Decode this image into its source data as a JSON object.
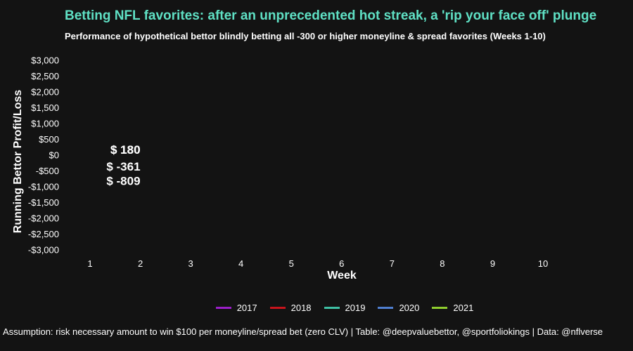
{
  "title": "Betting NFL favorites: after an unprecedented hot streak, a 'rip your face off' plunge",
  "subtitle": "Performance of hypothetical bettor blindly betting all -300 or higher moneyline & spread favorites (Weeks 1-10)",
  "caption": "Assumption: risk necessary amount to win $100 per moneyline/spread bet (zero CLV) | Table: @deepvaluebettor, @sportfoliokings | Data: @nflverse",
  "colors": {
    "background": "#131313",
    "title": "#5fe0c4",
    "text": "#ffffff"
  },
  "chart_data": {
    "type": "line",
    "title": "Betting NFL favorites: after an unprecedented hot streak, a 'rip your face off' plunge",
    "subtitle": "Performance of hypothetical bettor blindly betting all -300 or higher moneyline & spread favorites (Weeks 1-10)",
    "xlabel": "Week",
    "ylabel": "Running Bettor Profit/Loss",
    "x_ticks": [
      1,
      2,
      3,
      4,
      5,
      6,
      7,
      8,
      9,
      10
    ],
    "y_ticks": [
      3000,
      2500,
      2000,
      1500,
      1000,
      500,
      0,
      -500,
      -1000,
      -1500,
      -2000,
      -2500,
      -3000
    ],
    "y_tick_labels": [
      "$3,000",
      "$2,500",
      "$2,000",
      "$1,500",
      "$1,000",
      "$500",
      "$0",
      "-$500",
      "-$1,000",
      "-$1,500",
      "-$2,000",
      "-$2,500",
      "-$3,000"
    ],
    "xlim": [
      1,
      10
    ],
    "ylim": [
      -3000,
      3000
    ],
    "grid": false,
    "legend_position": "bottom",
    "series": [
      {
        "name": "2017",
        "color": "#9b1fc9"
      },
      {
        "name": "2018",
        "color": "#c8141c"
      },
      {
        "name": "2019",
        "color": "#3ec0a4"
      },
      {
        "name": "2020",
        "color": "#4f7fd0"
      },
      {
        "name": "2021",
        "color": "#8fce2e"
      }
    ],
    "annotations": [
      {
        "text": "$ 180",
        "x": 2,
        "y": 180
      },
      {
        "text": "$ 180",
        "x": 2,
        "y": 180
      },
      {
        "text": "$ -361",
        "x": 2,
        "y": -361
      },
      {
        "text": "$ -809",
        "x": 2,
        "y": -809
      }
    ]
  }
}
